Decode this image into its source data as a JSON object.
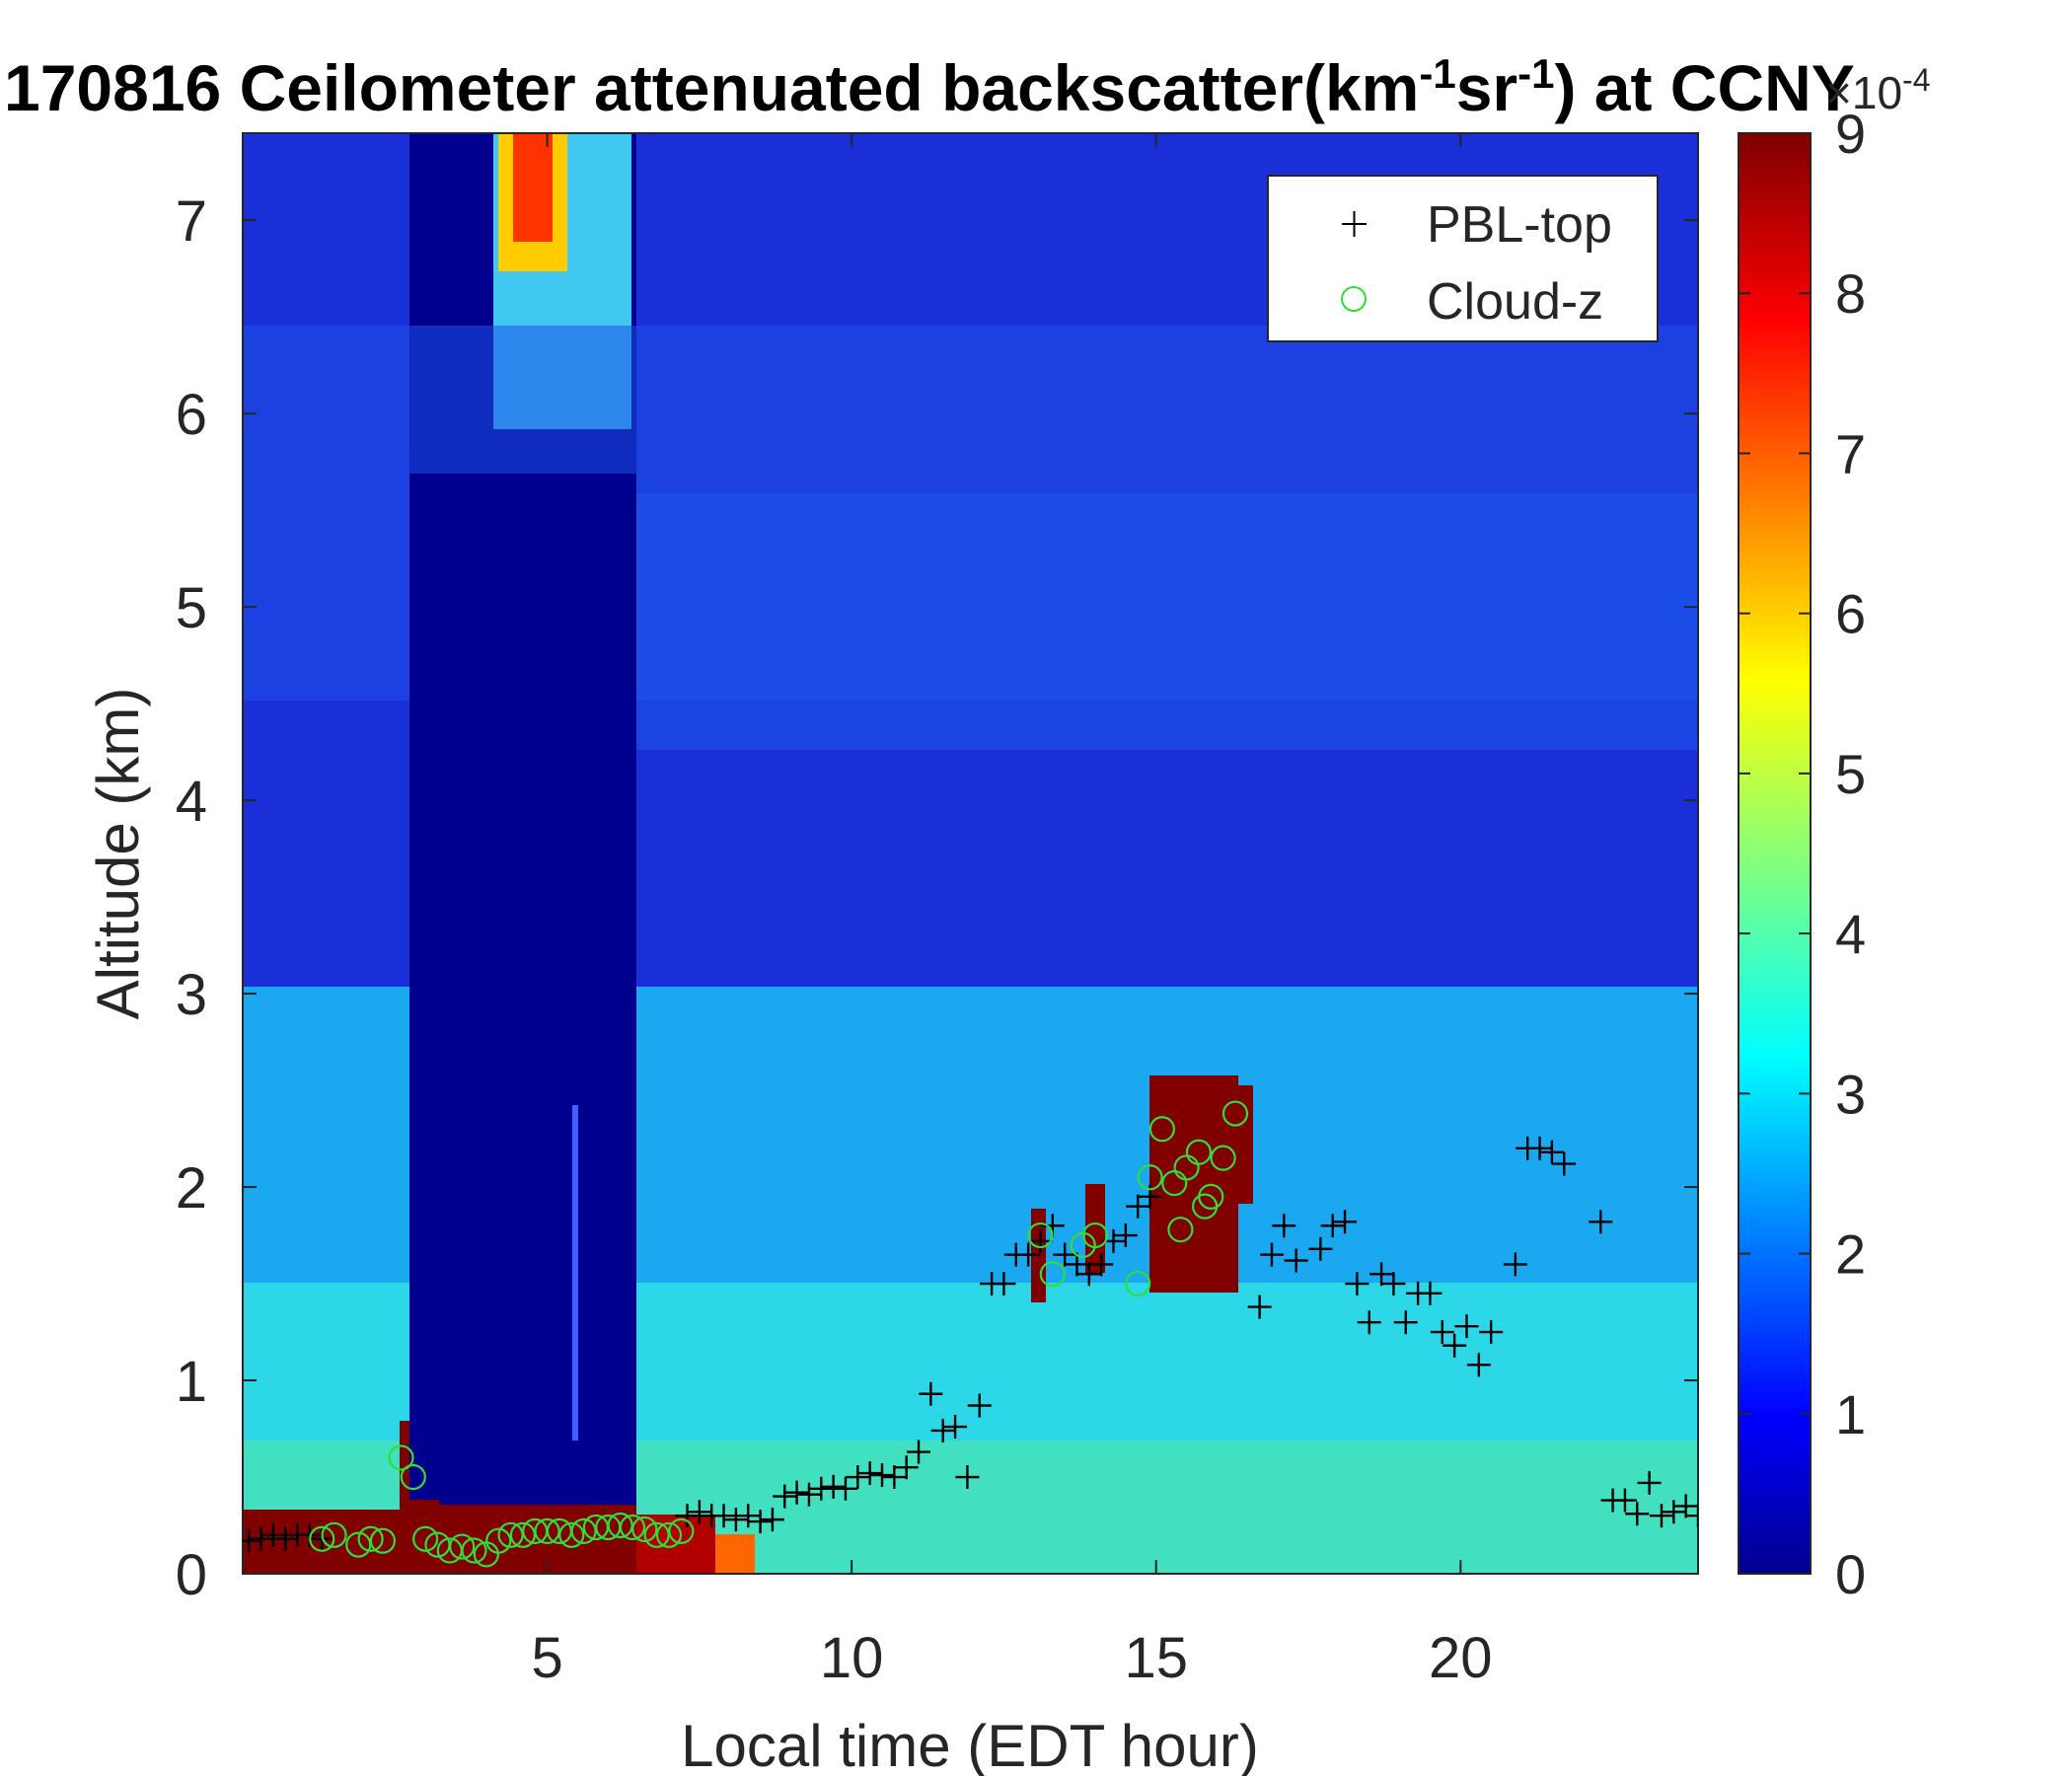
{
  "chart_data": {
    "type": "heatmap",
    "title_prefix": "170816 Ceilometer attenuated backscatter(km",
    "title_sup1": "-1",
    "title_mid": "sr",
    "title_sup2": "-1",
    "title_suffix": ") at CCNY",
    "xlabel": "Local time (EDT hour)",
    "ylabel": "Altitude (km)",
    "xlim": [
      0,
      23.9
    ],
    "ylim": [
      0,
      7.45
    ],
    "xticks": [
      5,
      10,
      15,
      20
    ],
    "yticks": [
      0,
      1,
      2,
      3,
      4,
      5,
      6,
      7
    ],
    "colorbar": {
      "clim": [
        0,
        9
      ],
      "ticks": [
        0,
        1,
        2,
        3,
        4,
        5,
        6,
        7,
        8,
        9
      ],
      "exponent_base": "×10",
      "exponent_power": "-4",
      "colormap": "jet"
    },
    "legend": {
      "position": "top-right",
      "entries": [
        {
          "name": "PBL-top",
          "marker": "+",
          "color": "#000000"
        },
        {
          "name": "Cloud-z",
          "marker": "o",
          "color": "#33dd33"
        }
      ]
    },
    "series": [
      {
        "name": "PBL-top",
        "x": [
          0.1,
          0.3,
          0.5,
          0.7,
          0.9,
          1.1,
          1.3,
          7.3,
          7.5,
          7.7,
          7.9,
          8.1,
          8.3,
          8.5,
          8.7,
          8.9,
          9.1,
          9.3,
          9.5,
          9.7,
          9.9,
          10.1,
          10.3,
          10.5,
          10.7,
          10.9,
          11.1,
          11.3,
          11.5,
          11.7,
          11.9,
          12.1,
          12.3,
          12.5,
          12.7,
          12.9,
          13.1,
          13.3,
          13.5,
          13.7,
          13.9,
          14.1,
          14.3,
          14.5,
          14.7,
          14.9,
          16.7,
          16.9,
          17.1,
          17.3,
          17.7,
          17.9,
          18.1,
          18.3,
          18.5,
          18.7,
          18.9,
          19.1,
          19.3,
          19.5,
          19.7,
          19.9,
          20.1,
          20.3,
          20.5,
          20.9,
          21.1,
          21.3,
          21.5,
          21.7,
          22.3,
          22.5,
          22.7,
          22.9,
          23.1,
          23.3,
          23.5,
          23.7,
          23.9
        ],
        "y": [
          0.17,
          0.18,
          0.2,
          0.18,
          0.2,
          0.2,
          0.18,
          0.3,
          0.32,
          0.3,
          0.3,
          0.28,
          0.3,
          0.27,
          0.28,
          0.4,
          0.42,
          0.41,
          0.44,
          0.45,
          0.44,
          0.5,
          0.52,
          0.51,
          0.5,
          0.55,
          0.63,
          0.93,
          0.74,
          0.76,
          0.5,
          0.87,
          1.5,
          1.5,
          1.65,
          1.65,
          1.72,
          1.8,
          1.65,
          1.6,
          1.55,
          1.6,
          1.72,
          1.75,
          1.9,
          1.95,
          1.38,
          1.65,
          1.8,
          1.62,
          1.68,
          1.8,
          1.82,
          1.5,
          1.3,
          1.55,
          1.5,
          1.3,
          1.45,
          1.45,
          1.25,
          1.18,
          1.28,
          1.08,
          1.25,
          1.6,
          2.2,
          2.2,
          2.18,
          2.12,
          1.82,
          0.38,
          0.38,
          0.31,
          0.47,
          0.3,
          0.32,
          0.35,
          0.3
        ]
      },
      {
        "name": "Cloud-z",
        "x": [
          1.3,
          1.5,
          1.9,
          2.1,
          2.3,
          2.6,
          2.8,
          3.0,
          3.2,
          3.4,
          3.6,
          3.8,
          4.0,
          4.2,
          4.4,
          4.6,
          4.8,
          5.0,
          5.2,
          5.4,
          5.6,
          5.8,
          6.0,
          6.2,
          6.4,
          6.6,
          6.8,
          7.0,
          7.2,
          13.1,
          13.3,
          13.8,
          14.0,
          14.7,
          14.9,
          15.1,
          15.3,
          15.5,
          15.7,
          15.9,
          16.1,
          16.3,
          15.4,
          15.8
        ],
        "y": [
          0.18,
          0.2,
          0.15,
          0.18,
          0.17,
          0.6,
          0.5,
          0.18,
          0.15,
          0.12,
          0.14,
          0.12,
          0.1,
          0.17,
          0.2,
          0.2,
          0.22,
          0.22,
          0.22,
          0.2,
          0.22,
          0.24,
          0.24,
          0.25,
          0.24,
          0.23,
          0.2,
          0.2,
          0.22,
          1.75,
          1.55,
          1.7,
          1.75,
          1.5,
          2.05,
          2.3,
          2.02,
          2.1,
          2.18,
          1.95,
          2.15,
          2.38,
          1.78,
          1.9
        ]
      }
    ]
  }
}
